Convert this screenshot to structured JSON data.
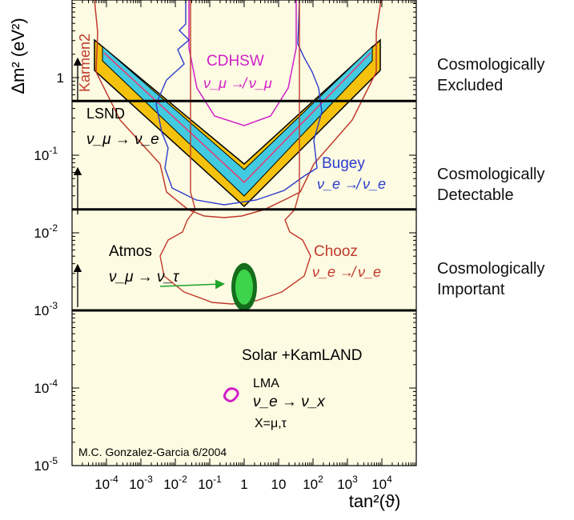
{
  "chart_data": {
    "type": "contour",
    "ylabel": "Δm² (eV²)",
    "xlabel": "tan²(ϑ)",
    "xscale": "log",
    "yscale": "log",
    "xlim": [
      1e-05,
      100000
    ],
    "ylim": [
      1e-05,
      10
    ],
    "background": "#fdfbe2",
    "x_ticks": [
      {
        "value": 0.0001,
        "label": "10",
        "sup": "-4"
      },
      {
        "value": 0.001,
        "label": "10",
        "sup": "-3"
      },
      {
        "value": 0.01,
        "label": "10",
        "sup": "-2"
      },
      {
        "value": 0.1,
        "label": "10",
        "sup": "-1"
      },
      {
        "value": 1,
        "label": "1",
        "sup": ""
      },
      {
        "value": 10,
        "label": "10",
        "sup": ""
      },
      {
        "value": 100,
        "label": "10",
        "sup": "2"
      },
      {
        "value": 1000,
        "label": "10",
        "sup": "3"
      },
      {
        "value": 10000,
        "label": "10",
        "sup": "4"
      }
    ],
    "y_ticks": [
      {
        "value": 1,
        "label": "1",
        "sup": ""
      },
      {
        "value": 0.1,
        "label": "10",
        "sup": "-1"
      },
      {
        "value": 0.01,
        "label": "10",
        "sup": "-2"
      },
      {
        "value": 0.001,
        "label": "10",
        "sup": "-3"
      },
      {
        "value": 0.0001,
        "label": "10",
        "sup": "-4"
      },
      {
        "value": 1e-05,
        "label": "10",
        "sup": "-5"
      }
    ],
    "threshold_lines_dm2": [
      0.5,
      0.02,
      0.001
    ],
    "annotations": {
      "karmen": "Karmen2",
      "cdhsw": "CDHSW",
      "cdhsw_process": "ν_μ ↛ ν_μ",
      "lsnd": "LSND",
      "lsnd_process": "ν_μ → ν_e",
      "bugey": "Bugey",
      "bugey_process": "ν_e ↛ ν_e",
      "atmos": "Atmos",
      "atmos_process": "ν_μ → ν_τ",
      "chooz": "Chooz",
      "chooz_process": "ν_e ↛ ν_e",
      "solar": "Solar +KamLAND",
      "lma": "LMA",
      "lma_process": "ν_e → ν_x",
      "lma_x": "X=μ,τ",
      "credit": "M.C. Gonzalez-Garcia 6/2004"
    },
    "regions": {
      "atmos_center": {
        "tan2": 1.0,
        "dm2": 0.002
      },
      "lma_center": {
        "tan2": 0.45,
        "dm2": 8e-05
      }
    },
    "colors": {
      "karmen": "#c0392b",
      "cdhsw": "#d020c8",
      "bugey": "#2b3bcc",
      "chooz": "#c0392b",
      "lsnd_fill_outer": "#f4c20d",
      "lsnd_fill_inner": "#42cbe0",
      "atmos_outer": "#156d1c",
      "atmos_inner": "#3dd34a",
      "lma": "#d020c8",
      "arrow_green": "#1fa32a"
    }
  },
  "side_labels": [
    {
      "line1": "Cosmologically",
      "line2": "Excluded"
    },
    {
      "line1": "Cosmologically",
      "line2": "Detectable"
    },
    {
      "line1": "Cosmologically",
      "line2": "Important"
    }
  ]
}
